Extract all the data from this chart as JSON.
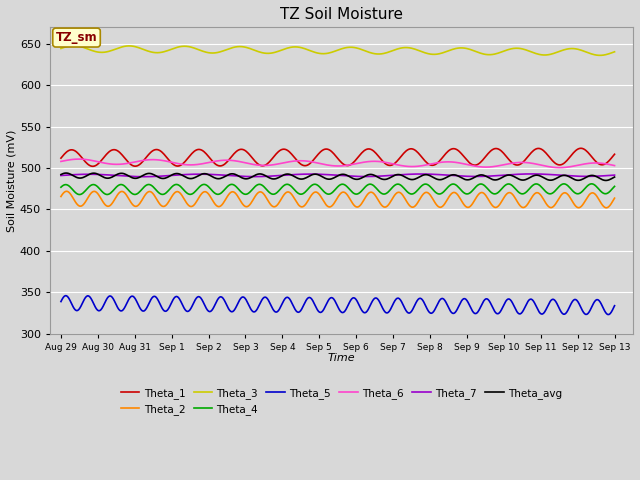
{
  "title": "TZ Soil Moisture",
  "xlabel": "Time",
  "ylabel": "Soil Moisture (mV)",
  "ylim": [
    300,
    670
  ],
  "yticks": [
    300,
    350,
    400,
    450,
    500,
    550,
    600,
    650
  ],
  "background_color": "#d8d8d8",
  "plot_bg_color": "#d8d8d8",
  "grid_color": "#ffffff",
  "series": [
    {
      "name": "Theta_1",
      "color": "#cc0000",
      "base": 512,
      "amp": 10,
      "period": 1.15,
      "trend": 2.0,
      "phase": 0.0
    },
    {
      "name": "Theta_2",
      "color": "#ff8800",
      "base": 463,
      "amp": 9,
      "period": 0.75,
      "trend": -2.0,
      "phase": 0.3
    },
    {
      "name": "Theta_3",
      "color": "#cccc00",
      "base": 644,
      "amp": 4,
      "period": 1.5,
      "trend": -4.0,
      "phase": 0.1
    },
    {
      "name": "Theta_4",
      "color": "#00aa00",
      "base": 474,
      "amp": 6,
      "period": 0.75,
      "trend": 1.0,
      "phase": 0.5
    },
    {
      "name": "Theta_5",
      "color": "#0000cc",
      "base": 337,
      "amp": 9,
      "period": 0.6,
      "trend": -5.0,
      "phase": 0.2
    },
    {
      "name": "Theta_6",
      "color": "#ff44cc",
      "base": 508,
      "amp": 3,
      "period": 2.0,
      "trend": -5.0,
      "phase": 0.0
    },
    {
      "name": "Theta_7",
      "color": "#9900cc",
      "base": 491,
      "amp": 1.5,
      "period": 3.0,
      "trend": 0.5,
      "phase": 0.0
    },
    {
      "name": "Theta_avg",
      "color": "#000000",
      "base": 491,
      "amp": 3,
      "period": 0.75,
      "trend": -3.0,
      "phase": 0.4
    }
  ],
  "legend_order": [
    "Theta_1",
    "Theta_2",
    "Theta_3",
    "Theta_4",
    "Theta_5",
    "Theta_6",
    "Theta_7",
    "Theta_avg"
  ],
  "annotation_text": "TZ_sm",
  "annotation_color": "#880000",
  "annotation_bg": "#ffffcc",
  "annotation_border": "#aa8800"
}
